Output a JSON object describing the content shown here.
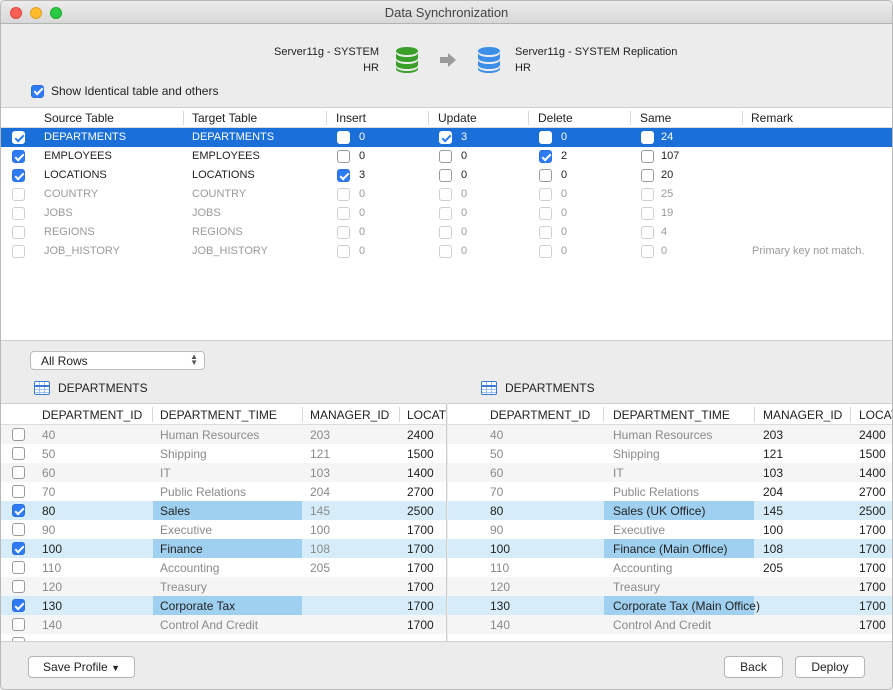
{
  "window": {
    "title": "Data Synchronization"
  },
  "source": {
    "server": "Server11g - SYSTEM",
    "schema": "HR",
    "color": "#3aa02a"
  },
  "target": {
    "server": "Server11g - SYSTEM Replication",
    "schema": "HR",
    "color": "#3b8fe8"
  },
  "show_identical": {
    "label": "Show Identical table and others",
    "checked": true
  },
  "sync_table": {
    "columns": [
      "Source Table",
      "Target Table",
      "Insert",
      "Update",
      "Delete",
      "Same",
      "Remark"
    ],
    "rows": [
      {
        "checked": true,
        "source": "DEPARTMENTS",
        "target": "DEPARTMENTS",
        "insert": "0",
        "insert_checked": false,
        "update": "3",
        "update_checked": true,
        "delete": "0",
        "delete_checked": false,
        "same": "24",
        "same_checked": false,
        "remark": "",
        "selected": true,
        "disabled": false
      },
      {
        "checked": true,
        "source": "EMPLOYEES",
        "target": "EMPLOYEES",
        "insert": "0",
        "insert_checked": false,
        "update": "0",
        "update_checked": false,
        "delete": "2",
        "delete_checked": true,
        "same": "107",
        "same_checked": false,
        "remark": "",
        "selected": false,
        "disabled": false
      },
      {
        "checked": true,
        "source": "LOCATIONS",
        "target": "LOCATIONS",
        "insert": "3",
        "insert_checked": true,
        "update": "0",
        "update_checked": false,
        "delete": "0",
        "delete_checked": false,
        "same": "20",
        "same_checked": false,
        "remark": "",
        "selected": false,
        "disabled": false
      },
      {
        "checked": false,
        "source": "COUNTRY",
        "target": "COUNTRY",
        "insert": "0",
        "insert_checked": false,
        "update": "0",
        "update_checked": false,
        "delete": "0",
        "delete_checked": false,
        "same": "25",
        "same_checked": false,
        "remark": "",
        "selected": false,
        "disabled": true
      },
      {
        "checked": false,
        "source": "JOBS",
        "target": "JOBS",
        "insert": "0",
        "insert_checked": false,
        "update": "0",
        "update_checked": false,
        "delete": "0",
        "delete_checked": false,
        "same": "19",
        "same_checked": false,
        "remark": "",
        "selected": false,
        "disabled": true
      },
      {
        "checked": false,
        "source": "REGIONS",
        "target": "REGIONS",
        "insert": "0",
        "insert_checked": false,
        "update": "0",
        "update_checked": false,
        "delete": "0",
        "delete_checked": false,
        "same": "4",
        "same_checked": false,
        "remark": "",
        "selected": false,
        "disabled": true
      },
      {
        "checked": false,
        "source": "JOB_HISTORY",
        "target": "JOB_HISTORY",
        "insert": "0",
        "insert_checked": false,
        "update": "0",
        "update_checked": false,
        "delete": "0",
        "delete_checked": false,
        "same": "0",
        "same_checked": false,
        "remark": "Primary key not match.",
        "selected": false,
        "disabled": true
      }
    ]
  },
  "rows_filter": {
    "value": "All Rows"
  },
  "left_panel": {
    "title": "DEPARTMENTS",
    "columns": [
      "DEPARTMENT_ID",
      "DEPARTMENT_TIME",
      "MANAGER_ID",
      "LOCATI"
    ],
    "rows": [
      {
        "checked": false,
        "diff": false,
        "id": "40",
        "name": "Human Resources",
        "manager": "203",
        "location": "2400"
      },
      {
        "checked": false,
        "diff": false,
        "id": "50",
        "name": "Shipping",
        "manager": "121",
        "location": "1500"
      },
      {
        "checked": false,
        "diff": false,
        "id": "60",
        "name": "IT",
        "manager": "103",
        "location": "1400"
      },
      {
        "checked": false,
        "diff": false,
        "id": "70",
        "name": "Public Relations",
        "manager": "204",
        "location": "2700"
      },
      {
        "checked": true,
        "diff": true,
        "id": "80",
        "name": "Sales",
        "manager": "145",
        "location": "2500"
      },
      {
        "checked": false,
        "diff": false,
        "id": "90",
        "name": "Executive",
        "manager": "100",
        "location": "1700"
      },
      {
        "checked": true,
        "diff": true,
        "id": "100",
        "name": "Finance",
        "manager": "108",
        "location": "1700"
      },
      {
        "checked": false,
        "diff": false,
        "id": "110",
        "name": "Accounting",
        "manager": "205",
        "location": "1700"
      },
      {
        "checked": false,
        "diff": false,
        "id": "120",
        "name": "Treasury",
        "manager": "",
        "location": "1700"
      },
      {
        "checked": true,
        "diff": true,
        "id": "130",
        "name": "Corporate Tax",
        "manager": "",
        "location": "1700"
      },
      {
        "checked": false,
        "diff": false,
        "id": "140",
        "name": "Control And Credit",
        "manager": "",
        "location": "1700"
      }
    ]
  },
  "right_panel": {
    "title": "DEPARTMENTS",
    "columns": [
      "DEPARTMENT_ID",
      "DEPARTMENT_TIME",
      "MANAGER_ID",
      "LOCAT"
    ],
    "rows": [
      {
        "diff": false,
        "id": "40",
        "name": "Human Resources",
        "manager": "203",
        "location": "2400"
      },
      {
        "diff": false,
        "id": "50",
        "name": "Shipping",
        "manager": "121",
        "location": "1500"
      },
      {
        "diff": false,
        "id": "60",
        "name": "IT",
        "manager": "103",
        "location": "1400"
      },
      {
        "diff": false,
        "id": "70",
        "name": "Public Relations",
        "manager": "204",
        "location": "2700"
      },
      {
        "diff": true,
        "id": "80",
        "name": "Sales (UK Office)",
        "manager": "145",
        "location": "2500"
      },
      {
        "diff": false,
        "id": "90",
        "name": "Executive",
        "manager": "100",
        "location": "1700"
      },
      {
        "diff": true,
        "id": "100",
        "name": "Finance (Main Office)",
        "manager": "108",
        "location": "1700"
      },
      {
        "diff": false,
        "id": "110",
        "name": "Accounting",
        "manager": "205",
        "location": "1700"
      },
      {
        "diff": false,
        "id": "120",
        "name": "Treasury",
        "manager": "",
        "location": "1700"
      },
      {
        "diff": true,
        "id": "130",
        "name": "Corporate Tax (Main Office)",
        "manager": "",
        "location": "1700"
      },
      {
        "diff": false,
        "id": "140",
        "name": "Control And Credit",
        "manager": "",
        "location": "1700"
      }
    ]
  },
  "footer": {
    "save_profile": "Save Profile",
    "back": "Back",
    "deploy": "Deploy"
  }
}
